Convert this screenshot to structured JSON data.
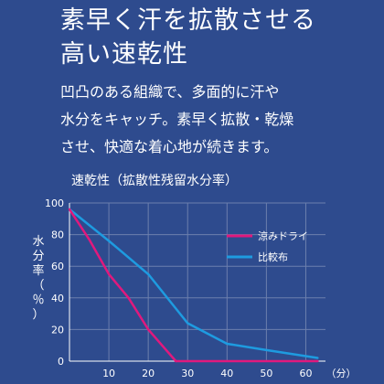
{
  "headline": {
    "line1": "素早く汗を拡散させる",
    "line2": "高い速乾性"
  },
  "body": {
    "line1": "凹凸のある組織で、多面的に汗や",
    "line2": "水分をキャッチ。素早く拡散・乾燥",
    "line3": "させ、快適な着心地が続きます。"
  },
  "colors": {
    "background": "#2e4b8e",
    "suzumi_dry": "#e0197d",
    "comparison": "#1e9be0"
  },
  "chart_data": {
    "type": "line",
    "title": "速乾性（拡散性残留水分率）",
    "xlabel": "（分）",
    "ylabel": "水分率（％）",
    "xlim": [
      0,
      65
    ],
    "ylim": [
      0,
      100
    ],
    "x_ticks": [
      "10",
      "20",
      "30",
      "40",
      "50",
      "60"
    ],
    "y_ticks": [
      "0",
      "20",
      "40",
      "60",
      "80",
      "100"
    ],
    "grid": true,
    "legend_position": "top-right",
    "series": [
      {
        "name": "涼みドライ",
        "color": "#e0197d",
        "x": [
          0,
          5,
          10,
          15,
          20,
          27,
          30,
          63
        ],
        "y": [
          96,
          77,
          55,
          40,
          20,
          0,
          0,
          0
        ]
      },
      {
        "name": "比較布",
        "color": "#1e9be0",
        "x": [
          0,
          10,
          20,
          30,
          40,
          50,
          63
        ],
        "y": [
          96,
          76,
          55,
          24,
          11,
          7,
          2
        ]
      }
    ]
  }
}
